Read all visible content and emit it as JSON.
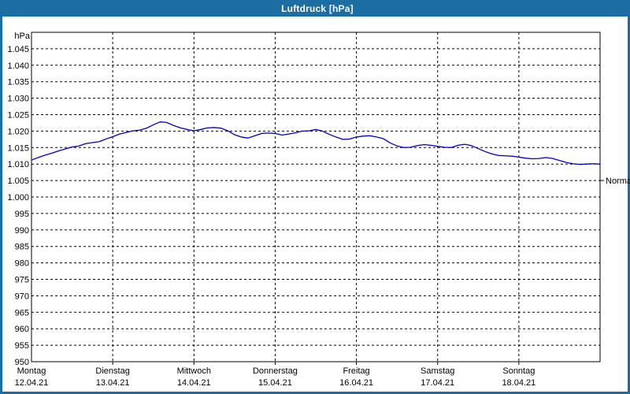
{
  "window": {
    "title": "Luftdruck [hPa]"
  },
  "colors": {
    "titlebar": "#1d6da5",
    "titlebar_text": "#ffffff",
    "frame": "#1d6da5",
    "background": "#ffffff",
    "plot_border": "#000000",
    "gridline": "#000000",
    "text": "#000000",
    "line": "#0000c8"
  },
  "chart_data": {
    "type": "line",
    "title": "Luftdruck [hPa]",
    "unit_label": "hPa",
    "ylim": [
      950,
      1050
    ],
    "ytick_step": 5,
    "grid": {
      "style": "dashed",
      "h_lines": "every 5 hPa",
      "v_lines": "at each day start"
    },
    "legend": "none",
    "y_ticks": [
      {
        "value": 1045,
        "label": "1.045"
      },
      {
        "value": 1040,
        "label": "1.040"
      },
      {
        "value": 1035,
        "label": "1.035"
      },
      {
        "value": 1030,
        "label": "1.030"
      },
      {
        "value": 1025,
        "label": "1.025"
      },
      {
        "value": 1020,
        "label": "1.020"
      },
      {
        "value": 1015,
        "label": "1.015"
      },
      {
        "value": 1010,
        "label": "1.010"
      },
      {
        "value": 1005,
        "label": "1.005"
      },
      {
        "value": 1000,
        "label": "1.000"
      },
      {
        "value": 995,
        "label": "995"
      },
      {
        "value": 990,
        "label": "990"
      },
      {
        "value": 985,
        "label": "985"
      },
      {
        "value": 980,
        "label": "980"
      },
      {
        "value": 975,
        "label": "975"
      },
      {
        "value": 970,
        "label": "970"
      },
      {
        "value": 965,
        "label": "965"
      },
      {
        "value": 960,
        "label": "960"
      },
      {
        "value": 955,
        "label": "955"
      },
      {
        "value": 950,
        "label": "950"
      }
    ],
    "x_axis": {
      "hours_total": 168,
      "days": [
        {
          "name": "Montag",
          "date": "12.04.21"
        },
        {
          "name": "Dienstag",
          "date": "13.04.21"
        },
        {
          "name": "Mittwoch",
          "date": "14.04.21"
        },
        {
          "name": "Donnerstag",
          "date": "15.04.21"
        },
        {
          "name": "Freitag",
          "date": "16.04.21"
        },
        {
          "name": "Samstag",
          "date": "17.04.21"
        },
        {
          "name": "Sonntag",
          "date": "18.04.21"
        }
      ]
    },
    "normal_marker": {
      "label": "Normal",
      "value_hpa": 1005
    },
    "series": [
      {
        "name": "Luftdruck",
        "color": "#0000c8",
        "sample_interval_hours": 2,
        "values_hpa": [
          1011.2,
          1012.0,
          1012.7,
          1013.3,
          1014.0,
          1014.6,
          1015.2,
          1015.5,
          1016.2,
          1016.5,
          1016.8,
          1017.6,
          1018.3,
          1019.1,
          1019.6,
          1020.1,
          1020.3,
          1020.9,
          1021.9,
          1022.8,
          1022.6,
          1021.7,
          1021.0,
          1020.5,
          1020.1,
          1020.5,
          1021.0,
          1021.1,
          1020.9,
          1020.1,
          1018.9,
          1018.2,
          1017.9,
          1018.6,
          1019.3,
          1019.4,
          1019.3,
          1018.8,
          1019.1,
          1019.5,
          1020.0,
          1020.1,
          1020.5,
          1020.0,
          1019.0,
          1018.2,
          1017.5,
          1017.6,
          1018.2,
          1018.5,
          1018.6,
          1018.2,
          1017.7,
          1016.4,
          1015.5,
          1015.0,
          1015.1,
          1015.6,
          1015.9,
          1015.7,
          1015.4,
          1015.1,
          1015.0,
          1015.7,
          1016.0,
          1015.6,
          1014.7,
          1013.8,
          1013.1,
          1012.6,
          1012.5,
          1012.4,
          1012.1,
          1011.8,
          1011.6,
          1011.7,
          1012.0,
          1011.7,
          1011.1,
          1010.5,
          1010.1,
          1009.9,
          1010.0,
          1010.1,
          1010.0
        ]
      }
    ]
  }
}
